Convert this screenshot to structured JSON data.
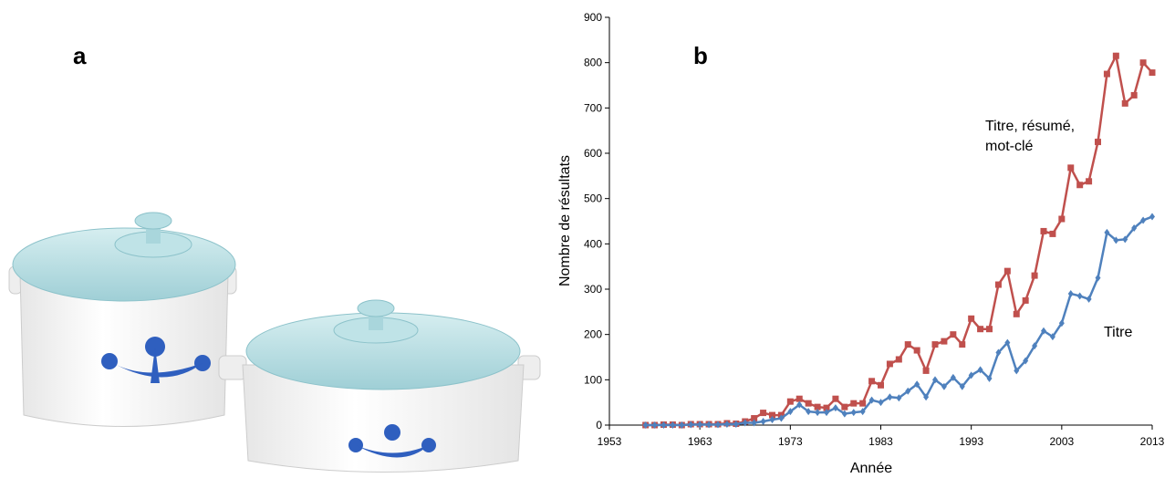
{
  "panel_labels": [
    "a",
    "b"
  ],
  "chart_data": {
    "type": "line",
    "x_label": "Année",
    "y_label": "Nombre de résultats",
    "x": [
      1957,
      1958,
      1959,
      1960,
      1961,
      1962,
      1963,
      1964,
      1965,
      1966,
      1967,
      1968,
      1969,
      1970,
      1971,
      1972,
      1973,
      1974,
      1975,
      1976,
      1977,
      1978,
      1979,
      1980,
      1981,
      1982,
      1983,
      1984,
      1985,
      1986,
      1987,
      1988,
      1989,
      1990,
      1991,
      1992,
      1993,
      1994,
      1995,
      1996,
      1997,
      1998,
      1999,
      2000,
      2001,
      2002,
      2003,
      2004,
      2005,
      2006,
      2007,
      2008,
      2009,
      2010,
      2011,
      2012,
      2013
    ],
    "series": [
      {
        "name": "Titre, résumé, mot-clé",
        "color": "#c0504d",
        "marker": "square",
        "values": [
          0,
          0,
          1,
          1,
          0,
          2,
          2,
          2,
          2,
          4,
          3,
          8,
          15,
          27,
          22,
          22,
          52,
          58,
          48,
          40,
          38,
          58,
          40,
          48,
          48,
          97,
          88,
          135,
          145,
          178,
          165,
          120,
          178,
          185,
          200,
          178,
          235,
          212,
          212,
          310,
          340,
          245,
          275,
          330,
          428,
          422,
          455,
          568,
          530,
          538,
          625,
          775,
          815,
          710,
          728,
          800,
          778
        ]
      },
      {
        "name": "Titre",
        "color": "#4f81bd",
        "marker": "diamond",
        "values": [
          0,
          0,
          0,
          0,
          0,
          1,
          1,
          1,
          1,
          2,
          2,
          5,
          5,
          8,
          12,
          15,
          30,
          45,
          30,
          28,
          28,
          38,
          25,
          28,
          30,
          55,
          50,
          62,
          60,
          75,
          90,
          62,
          100,
          85,
          105,
          85,
          110,
          122,
          103,
          160,
          182,
          120,
          142,
          175,
          208,
          195,
          225,
          290,
          285,
          278,
          325,
          425,
          408,
          410,
          435,
          452,
          460
        ]
      }
    ],
    "xlim": [
      1953,
      2013
    ],
    "xticks": [
      1953,
      1963,
      1973,
      1983,
      1993,
      2003,
      2013
    ],
    "ylim": [
      0,
      900
    ],
    "yticks": [
      0,
      100,
      200,
      300,
      400,
      500,
      600,
      700,
      800,
      900
    ],
    "grid": false
  }
}
